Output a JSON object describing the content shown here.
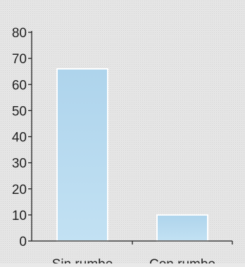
{
  "chart_data": {
    "type": "bar",
    "title": "",
    "xlabel": "",
    "ylabel": "",
    "categories": [
      "Sin rumbo",
      "Con rumbo"
    ],
    "values": [
      66,
      10
    ],
    "ylim": [
      0,
      80
    ],
    "yticks": [
      0,
      10,
      20,
      30,
      40,
      50,
      60,
      70,
      80
    ],
    "grid": false,
    "legend": "none",
    "colors": {
      "bar_top": "#aed4ec",
      "bar_bottom": "#c2e1f3",
      "bar_edge": "#ffffff",
      "axis": "#1e1e1e"
    }
  }
}
